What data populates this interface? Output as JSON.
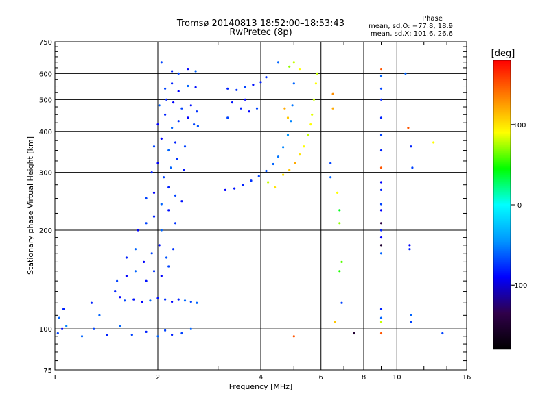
{
  "header": {
    "title_line1": "Tromsø 20140813 18:52:00–18:53:43",
    "title_line2": "RwPretec (8p)",
    "phase_title": "Phase",
    "phase_o": "mean, sd,O: −77.8, 18.9",
    "phase_x": "mean, sd,X: 101.6, 26.6"
  },
  "chart_data": {
    "type": "scatter",
    "title": "Tromsø 20140813 18:52:00–18:53:43",
    "subtitle": "RwPretec (8p)",
    "xlabel": "Frequency [MHz]",
    "ylabel": "Stationary phase Virtual Height [km]",
    "x_scale": "log",
    "y_scale": "log",
    "xlim": [
      1,
      16
    ],
    "ylim": [
      75,
      750
    ],
    "x_ticks": [
      1,
      2,
      4,
      6,
      8,
      10,
      16
    ],
    "y_ticks": [
      75,
      100,
      200,
      300,
      400,
      500,
      600,
      750
    ],
    "x_minor_ticks": [
      3,
      5,
      7,
      9,
      12,
      14
    ],
    "y_minor_ticks": [
      80,
      85,
      90,
      95,
      110,
      120,
      130,
      140,
      150,
      160,
      170,
      180,
      190,
      225,
      250,
      275,
      325,
      350,
      375,
      425,
      450,
      475,
      525,
      550,
      575,
      625,
      650,
      675,
      700,
      725
    ],
    "grid": true,
    "colorbar": {
      "label": "[deg]",
      "range": [
        -180,
        180
      ],
      "ticks": [
        100,
        0,
        -100
      ],
      "colors": [
        "#000000",
        "#30004a",
        "#0000ff",
        "#0096ff",
        "#00ffff",
        "#00ff00",
        "#ffff00",
        "#ff8000",
        "#ff0000"
      ]
    },
    "series": [
      {
        "mode": "O",
        "points": [
          [
            1.02,
            97,
            -70
          ],
          [
            1.05,
            100,
            -90
          ],
          [
            1.03,
            108,
            -60
          ],
          [
            1.06,
            115,
            -80
          ],
          [
            1.08,
            102,
            -50
          ],
          [
            1.2,
            95,
            -60
          ],
          [
            1.3,
            100,
            -70
          ],
          [
            1.42,
            96,
            -80
          ],
          [
            1.55,
            102,
            -60
          ],
          [
            1.68,
            96,
            -70
          ],
          [
            1.85,
            98,
            -80
          ],
          [
            2.0,
            95,
            -60
          ],
          [
            2.1,
            99,
            -70
          ],
          [
            2.2,
            96,
            -80
          ],
          [
            2.35,
            97,
            -70
          ],
          [
            2.5,
            100,
            -60
          ],
          [
            1.28,
            120,
            -80
          ],
          [
            1.35,
            110,
            -60
          ],
          [
            1.5,
            130,
            -80
          ],
          [
            1.55,
            125,
            -90
          ],
          [
            1.6,
            122,
            -70
          ],
          [
            1.7,
            123,
            -85
          ],
          [
            1.8,
            121,
            -90
          ],
          [
            1.9,
            122,
            -60
          ],
          [
            2.0,
            124,
            -85
          ],
          [
            2.1,
            123,
            -75
          ],
          [
            2.2,
            121,
            -90
          ],
          [
            2.3,
            123,
            -80
          ],
          [
            2.4,
            122,
            -60
          ],
          [
            2.5,
            121,
            -70
          ],
          [
            2.6,
            120,
            -60
          ],
          [
            1.52,
            140,
            -70
          ],
          [
            1.62,
            145,
            -90
          ],
          [
            1.72,
            150,
            -60
          ],
          [
            1.85,
            140,
            -85
          ],
          [
            1.95,
            150,
            -75
          ],
          [
            2.05,
            145,
            -90
          ],
          [
            2.15,
            155,
            -70
          ],
          [
            1.62,
            165,
            -80
          ],
          [
            1.72,
            175,
            -60
          ],
          [
            1.82,
            160,
            -90
          ],
          [
            1.92,
            170,
            -70
          ],
          [
            2.02,
            180,
            -85
          ],
          [
            2.12,
            165,
            -65
          ],
          [
            2.22,
            175,
            -75
          ],
          [
            1.75,
            200,
            -90
          ],
          [
            1.85,
            210,
            -70
          ],
          [
            1.95,
            220,
            -80
          ],
          [
            2.05,
            200,
            -60
          ],
          [
            2.15,
            230,
            -85
          ],
          [
            2.25,
            210,
            -75
          ],
          [
            1.85,
            250,
            -70
          ],
          [
            1.95,
            260,
            -90
          ],
          [
            2.05,
            240,
            -60
          ],
          [
            2.15,
            270,
            -80
          ],
          [
            2.25,
            255,
            -70
          ],
          [
            2.35,
            245,
            -85
          ],
          [
            1.92,
            300,
            -80
          ],
          [
            2.0,
            320,
            -90
          ],
          [
            2.08,
            290,
            -70
          ],
          [
            2.18,
            310,
            -60
          ],
          [
            2.28,
            330,
            -75
          ],
          [
            2.38,
            305,
            -85
          ],
          [
            1.95,
            360,
            -70
          ],
          [
            2.05,
            380,
            -90
          ],
          [
            2.15,
            350,
            -60
          ],
          [
            2.25,
            370,
            -80
          ],
          [
            2.4,
            360,
            -70
          ],
          [
            2.0,
            420,
            -90
          ],
          [
            2.1,
            450,
            -80
          ],
          [
            2.2,
            410,
            -60
          ],
          [
            2.3,
            430,
            -75
          ],
          [
            2.45,
            440,
            -90
          ],
          [
            2.55,
            420,
            -70
          ],
          [
            2.62,
            415,
            -65
          ],
          [
            2.02,
            480,
            -60
          ],
          [
            2.12,
            500,
            -80
          ],
          [
            2.22,
            490,
            -90
          ],
          [
            2.35,
            470,
            -70
          ],
          [
            2.5,
            480,
            -85
          ],
          [
            2.6,
            460,
            -75
          ],
          [
            2.1,
            540,
            -70
          ],
          [
            2.2,
            560,
            -80
          ],
          [
            2.3,
            530,
            -90
          ],
          [
            2.45,
            550,
            -60
          ],
          [
            2.58,
            545,
            -85
          ],
          [
            2.2,
            610,
            -80
          ],
          [
            2.3,
            600,
            -70
          ],
          [
            2.45,
            620,
            -90
          ],
          [
            2.58,
            610,
            -60
          ],
          [
            2.05,
            650,
            -70
          ],
          [
            3.15,
            265,
            -90
          ],
          [
            3.35,
            268,
            -85
          ],
          [
            3.55,
            275,
            -80
          ],
          [
            3.75,
            283,
            -75
          ],
          [
            3.95,
            292,
            -70
          ],
          [
            4.15,
            303,
            -65
          ],
          [
            4.35,
            318,
            -60
          ],
          [
            4.5,
            335,
            -55
          ],
          [
            4.65,
            358,
            -50
          ],
          [
            4.8,
            390,
            -45
          ],
          [
            4.9,
            430,
            -50
          ],
          [
            4.95,
            480,
            -55
          ],
          [
            5.0,
            560,
            -60
          ],
          [
            3.2,
            540,
            -80
          ],
          [
            3.4,
            535,
            -75
          ],
          [
            3.6,
            545,
            -70
          ],
          [
            3.8,
            555,
            -85
          ],
          [
            4.0,
            565,
            -80
          ],
          [
            4.15,
            585,
            -75
          ],
          [
            3.3,
            490,
            -85
          ],
          [
            3.5,
            470,
            -80
          ],
          [
            3.7,
            460,
            -90
          ],
          [
            3.9,
            470,
            -70
          ],
          [
            3.2,
            440,
            -70
          ],
          [
            3.6,
            500,
            -90
          ],
          [
            4.5,
            650,
            -60
          ]
        ]
      },
      {
        "mode": "X",
        "points": [
          [
            4.65,
            295,
            100
          ],
          [
            4.85,
            305,
            110
          ],
          [
            5.05,
            320,
            120
          ],
          [
            5.2,
            340,
            100
          ],
          [
            5.35,
            360,
            90
          ],
          [
            5.5,
            390,
            80
          ],
          [
            5.6,
            420,
            90
          ],
          [
            5.65,
            450,
            85
          ],
          [
            5.72,
            500,
            80
          ],
          [
            5.8,
            560,
            90
          ],
          [
            5.85,
            600,
            80
          ],
          [
            4.85,
            630,
            70
          ],
          [
            5.0,
            650,
            80
          ],
          [
            5.2,
            620,
            90
          ],
          [
            4.7,
            470,
            120
          ],
          [
            4.8,
            440,
            110
          ],
          [
            6.5,
            520,
            130
          ],
          [
            6.5,
            470,
            120
          ],
          [
            9.0,
            620,
            150
          ],
          [
            9.0,
            590,
            -60
          ],
          [
            9.0,
            540,
            -70
          ],
          [
            9.0,
            500,
            -80
          ],
          [
            9.0,
            440,
            -80
          ],
          [
            9.0,
            390,
            -70
          ],
          [
            9.0,
            350,
            -80
          ],
          [
            9.0,
            310,
            150
          ],
          [
            9.0,
            280,
            -90
          ],
          [
            9.0,
            265,
            -80
          ],
          [
            9.0,
            240,
            -70
          ],
          [
            9.0,
            230,
            -90
          ],
          [
            9.0,
            210,
            -140
          ],
          [
            9.0,
            200,
            -80
          ],
          [
            9.0,
            190,
            -90
          ],
          [
            9.0,
            180,
            -150
          ],
          [
            9.0,
            170,
            -60
          ],
          [
            9.0,
            115,
            -80
          ],
          [
            9.0,
            108,
            -60
          ],
          [
            9.0,
            105,
            80
          ],
          [
            9.0,
            97,
            150
          ],
          [
            10.6,
            600,
            -60
          ],
          [
            10.8,
            410,
            150
          ],
          [
            11.0,
            360,
            -80
          ],
          [
            11.1,
            310,
            -70
          ],
          [
            10.9,
            180,
            -90
          ],
          [
            10.9,
            175,
            -80
          ],
          [
            11.0,
            110,
            -60
          ],
          [
            11.0,
            105,
            -70
          ],
          [
            12.8,
            370,
            90
          ],
          [
            13.6,
            97,
            -70
          ],
          [
            6.4,
            320,
            -70
          ],
          [
            6.4,
            290,
            -60
          ],
          [
            6.8,
            230,
            40
          ],
          [
            6.8,
            210,
            70
          ],
          [
            6.9,
            160,
            60
          ],
          [
            6.7,
            260,
            90
          ],
          [
            6.8,
            150,
            50
          ],
          [
            6.9,
            120,
            -70
          ],
          [
            6.6,
            105,
            110
          ],
          [
            7.5,
            97,
            -150
          ],
          [
            5.0,
            95,
            150
          ],
          [
            4.2,
            280,
            80
          ],
          [
            4.4,
            270,
            100
          ]
        ]
      }
    ]
  }
}
